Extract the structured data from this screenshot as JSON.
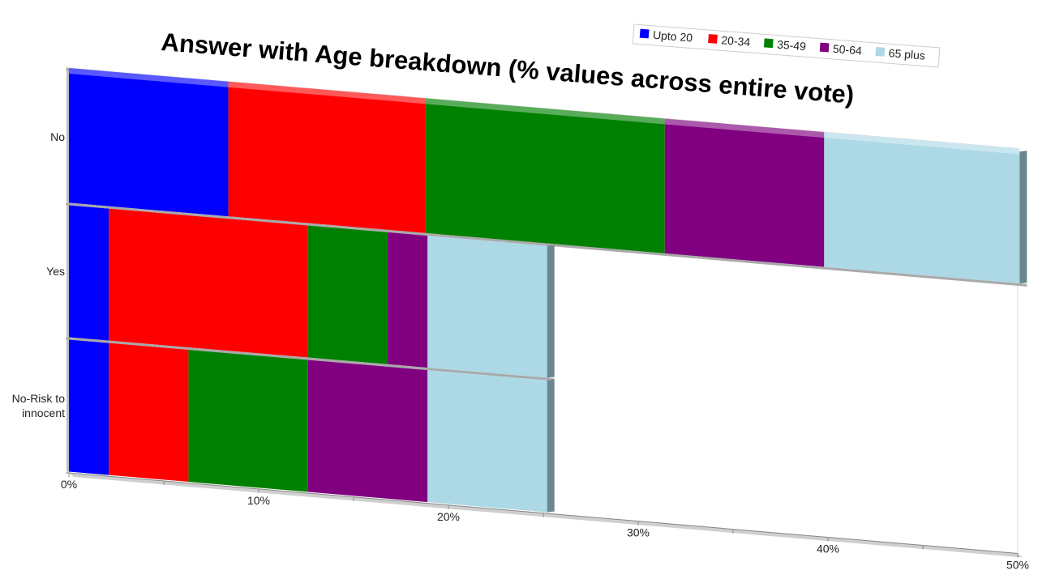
{
  "chart_data": {
    "type": "bar",
    "orientation": "horizontal",
    "stacked": true,
    "title": "Answer with Age breakdown (% values across entire vote)",
    "categories": [
      "No",
      "Yes",
      "No-Risk to innocent"
    ],
    "series": [
      {
        "name": "Upto 20",
        "color": "#0000ff",
        "values": [
          8.4,
          2.1,
          2.1
        ]
      },
      {
        "name": "20-34",
        "color": "#ff0000",
        "values": [
          10.4,
          10.5,
          4.2
        ]
      },
      {
        "name": "35-49",
        "color": "#008000",
        "values": [
          12.6,
          4.2,
          6.3
        ]
      },
      {
        "name": "50-64",
        "color": "#800080",
        "values": [
          8.4,
          2.1,
          6.3
        ]
      },
      {
        "name": "65 plus",
        "color": "#add8e6",
        "values": [
          10.3,
          6.3,
          6.3
        ]
      }
    ],
    "x_ticks": [
      "0%",
      "10%",
      "20%",
      "30%",
      "40%",
      "50%"
    ],
    "xlim": [
      0,
      50
    ],
    "xlabel": "",
    "ylabel": "",
    "legend_position": "top-right",
    "grid": false
  }
}
